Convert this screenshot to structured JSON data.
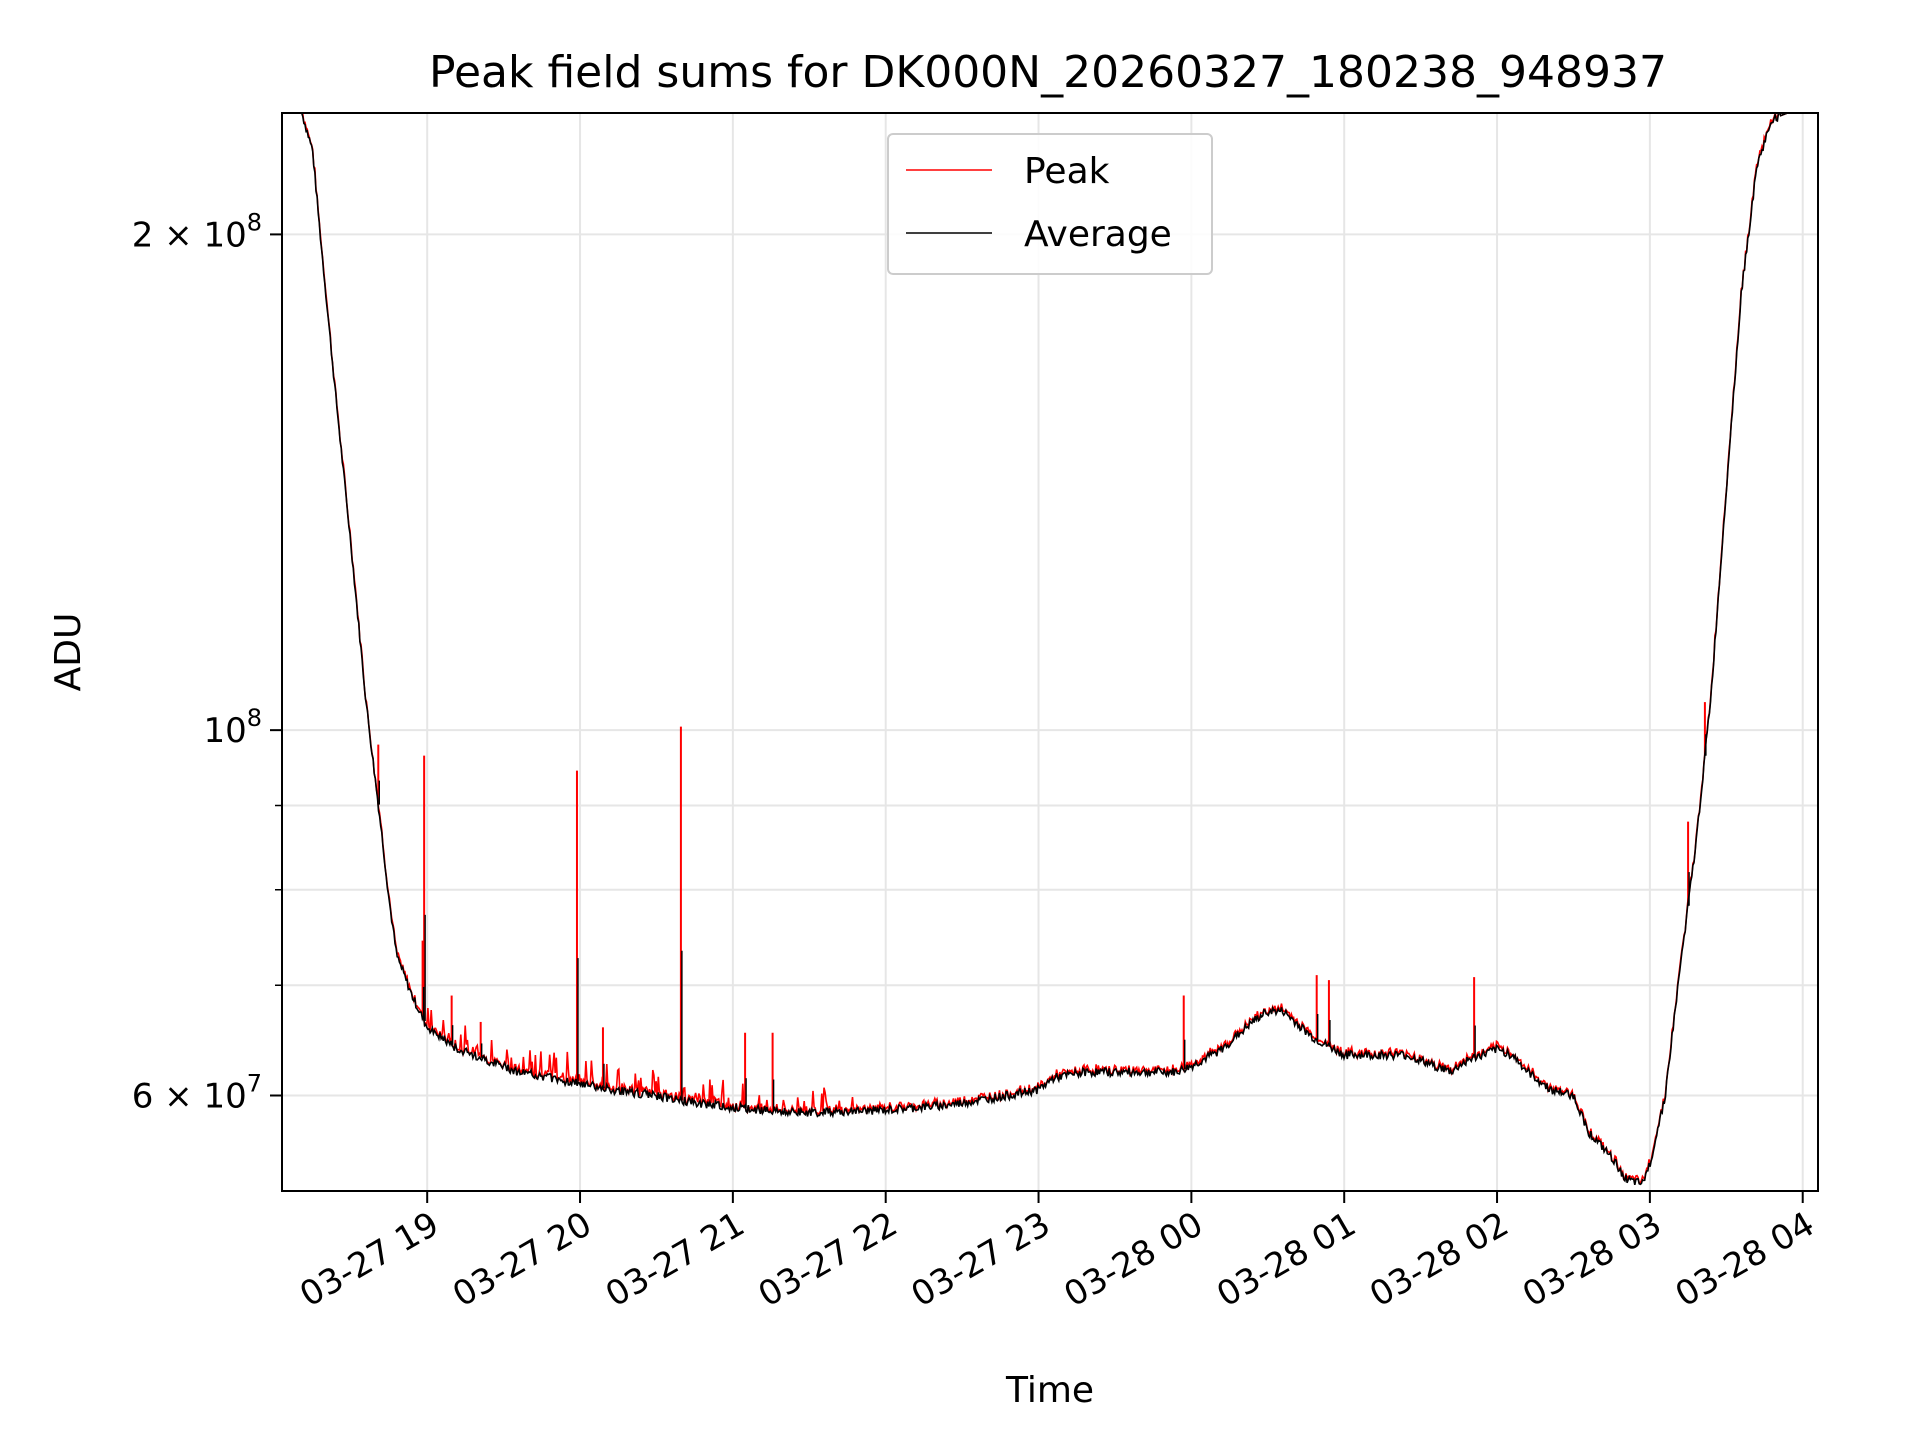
{
  "chart_data": {
    "type": "line",
    "title": "Peak field sums for DK000N_20260327_180238_948937",
    "xlabel": "Time",
    "ylabel": "ADU",
    "yscale": "log",
    "ylim": [
      52500000,
      237000000
    ],
    "xlim_hours": [
      18.05,
      28.1
    ],
    "grid": true,
    "legend_position": "upper center",
    "x_ticks": [
      {
        "label": "03-27 19",
        "hour": 19
      },
      {
        "label": "03-27 20",
        "hour": 20
      },
      {
        "label": "03-27 21",
        "hour": 21
      },
      {
        "label": "03-27 22",
        "hour": 22
      },
      {
        "label": "03-27 23",
        "hour": 23
      },
      {
        "label": "03-28 00",
        "hour": 24
      },
      {
        "label": "03-28 01",
        "hour": 25
      },
      {
        "label": "03-28 02",
        "hour": 26
      },
      {
        "label": "03-28 03",
        "hour": 27
      },
      {
        "label": "03-28 04",
        "hour": 28
      }
    ],
    "y_major_ticks": [
      {
        "mantissa": "2 × 10",
        "exp": "8",
        "value": 200000000
      },
      {
        "mantissa": "10",
        "exp": "8",
        "value": 100000000
      },
      {
        "mantissa": "6 × 10",
        "exp": "7",
        "value": 60000000
      }
    ],
    "y_minor_ticks": [
      70000000,
      80000000,
      90000000
    ],
    "series": [
      {
        "name": "Average",
        "color": "#000000",
        "x_hours": [
          18.05,
          18.18,
          18.25,
          18.3,
          18.4,
          18.5,
          18.6,
          18.65,
          18.7,
          18.75,
          18.8,
          18.9,
          19.0,
          19.1,
          19.2,
          19.4,
          19.6,
          19.8,
          20.0,
          20.2,
          20.5,
          20.7,
          21.0,
          21.2,
          21.4,
          21.6,
          21.8,
          22.0,
          22.2,
          22.4,
          22.6,
          22.8,
          23.0,
          23.1,
          23.3,
          23.5,
          23.7,
          23.9,
          24.0,
          24.2,
          24.4,
          24.5,
          24.6,
          24.8,
          25.0,
          25.2,
          25.4,
          25.5,
          25.6,
          25.7,
          25.8,
          26.0,
          26.1,
          26.2,
          26.35,
          26.5,
          26.6,
          26.75,
          26.85,
          26.95,
          27.0,
          27.1,
          27.2,
          27.3,
          27.4,
          27.5,
          27.6,
          27.7,
          27.8,
          27.9,
          27.95,
          28.1
        ],
        "values": [
          237000000,
          237000000,
          225000000,
          200000000,
          160000000,
          130000000,
          104000000,
          95000000,
          87000000,
          79000000,
          73000000,
          69000000,
          66000000,
          65000000,
          64000000,
          63000000,
          62000000,
          61500000,
          61000000,
          60500000,
          60000000,
          59500000,
          59000000,
          58800000,
          58600000,
          58600000,
          58700000,
          58800000,
          59000000,
          59200000,
          59600000,
          60000000,
          60500000,
          61500000,
          62000000,
          62000000,
          62000000,
          62000000,
          62500000,
          64000000,
          66500000,
          67500000,
          67500000,
          65000000,
          63500000,
          63500000,
          63500000,
          63000000,
          62500000,
          62000000,
          63000000,
          64000000,
          63500000,
          62000000,
          60500000,
          60000000,
          57000000,
          55000000,
          53300000,
          53000000,
          54500000,
          60000000,
          72000000,
          85000000,
          105000000,
          140000000,
          185000000,
          220000000,
          235000000,
          237000000,
          237000000,
          237000000
        ]
      },
      {
        "name": "Peak",
        "color": "#ff0000",
        "spikes": [
          {
            "hour": 18.68,
            "value": 98000000
          },
          {
            "hour": 18.98,
            "value": 96500000
          },
          {
            "hour": 18.97,
            "value": 74500000
          },
          {
            "hour": 19.16,
            "value": 69000000
          },
          {
            "hour": 19.35,
            "value": 66500000
          },
          {
            "hour": 19.98,
            "value": 94500000
          },
          {
            "hour": 20.15,
            "value": 66000000
          },
          {
            "hour": 20.66,
            "value": 100500000
          },
          {
            "hour": 21.08,
            "value": 65500000
          },
          {
            "hour": 21.26,
            "value": 65500000
          },
          {
            "hour": 23.95,
            "value": 69000000
          },
          {
            "hour": 24.82,
            "value": 71000000
          },
          {
            "hour": 24.9,
            "value": 70500000
          },
          {
            "hour": 25.85,
            "value": 70800000
          },
          {
            "hour": 27.25,
            "value": 88000000
          },
          {
            "hour": 27.36,
            "value": 104000000
          }
        ]
      }
    ]
  }
}
